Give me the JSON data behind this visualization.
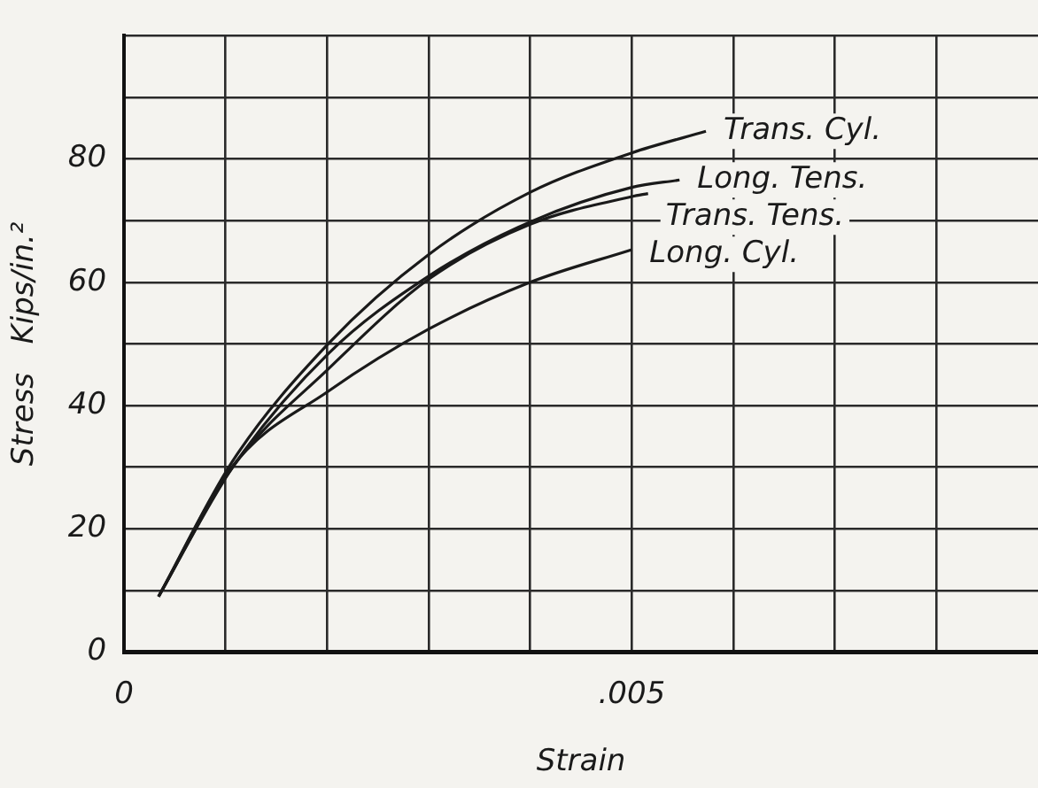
{
  "chart_data": {
    "type": "line",
    "xlabel": "Strain",
    "ylabel": "Stress   Kips/in.²",
    "xlim": [
      0,
      0.009
    ],
    "ylim": [
      0,
      100
    ],
    "xticks": [
      0,
      {
        "value": 0.001,
        "label": null
      },
      {
        "value": 0.002,
        "label": null
      },
      {
        "value": 0.003,
        "label": null
      },
      {
        "value": 0.004,
        "label": null
      },
      {
        "value": 0.005,
        "label": ".005"
      },
      {
        "value": 0.006,
        "label": null
      },
      {
        "value": 0.007,
        "label": null
      },
      {
        "value": 0.008,
        "label": null
      }
    ],
    "yticks": [
      0,
      {
        "value": 10,
        "label": null
      },
      20,
      {
        "value": 30,
        "label": null
      },
      40,
      {
        "value": 50,
        "label": null
      },
      60,
      {
        "value": 70,
        "label": null
      },
      80,
      {
        "value": 90,
        "label": null
      },
      {
        "value": 100,
        "label": null
      }
    ],
    "grid": true,
    "legend": false,
    "marker": "none",
    "line_style": "solid",
    "series": [
      {
        "name": "Trans. Cyl.",
        "color": "#1a1a1a",
        "x": [
          0.00034,
          0.00107,
          0.00201,
          0.003,
          0.004,
          0.005,
          0.00573
        ],
        "values": [
          9,
          31,
          50,
          64.5,
          74.6,
          81,
          84.5
        ]
      },
      {
        "name": "Long. Tens.",
        "color": "#1a1a1a",
        "x": [
          0.00034,
          0.00107,
          0.00201,
          0.003,
          0.004,
          0.005,
          0.00547
        ],
        "values": [
          9,
          30,
          48.4,
          61,
          69.8,
          75.4,
          76.6
        ]
      },
      {
        "name": "Trans. Tens.",
        "color": "#1a1a1a",
        "x": [
          0.00034,
          0.00107,
          0.00201,
          0.003,
          0.004,
          0.005,
          0.00516
        ],
        "values": [
          9,
          30,
          45.9,
          60.5,
          69.4,
          73.9,
          74.4
        ]
      },
      {
        "name": "Long. Cyl.",
        "color": "#1a1a1a",
        "x": [
          0.00034,
          0.00107,
          0.00201,
          0.003,
          0.004,
          0.005
        ],
        "values": [
          9,
          30.2,
          42.3,
          52.4,
          60,
          65.3
        ]
      }
    ]
  }
}
